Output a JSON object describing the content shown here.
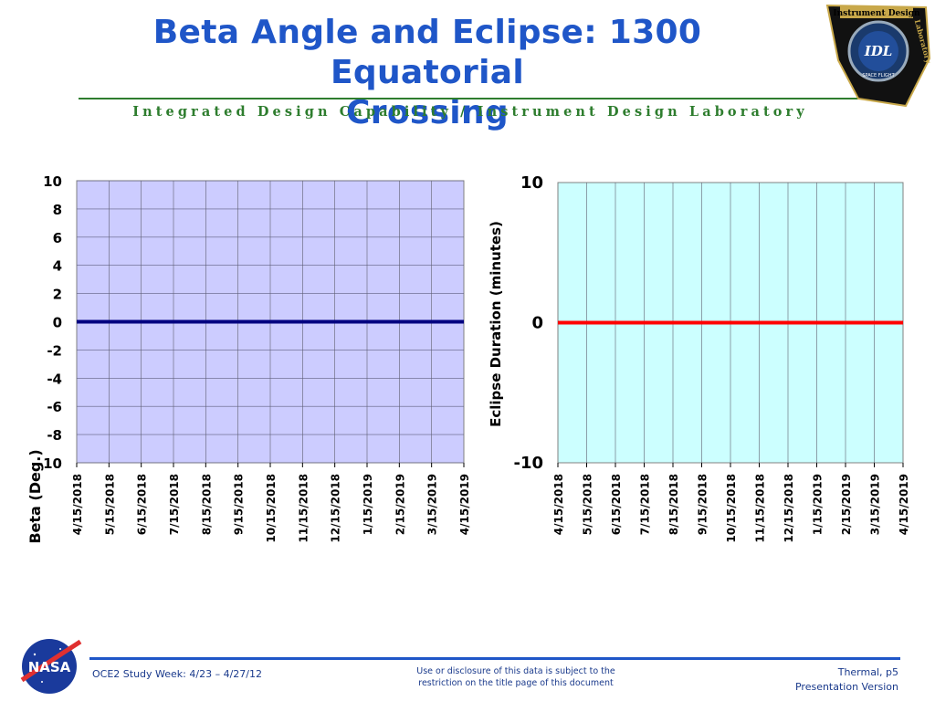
{
  "slide": {
    "title_line1": "Beta Angle and Eclipse: 1300 Equatorial",
    "title_line2": "Crossing",
    "subtitle": "Integrated Design Capability / Instrument Design Laboratory",
    "logo": {
      "top_text": "Instrument Design",
      "side_text": "Laboratory",
      "center_text": "IDL",
      "ring_text": "SPACE FLIGHT",
      "icon": "idl-mission-patch"
    },
    "nasa_logo_text": "NASA",
    "colors": {
      "title": "#1f56c8",
      "subtitle": "#2e7d2e",
      "beta_plot_bg": "#ccccff",
      "eclipse_plot_bg": "#ccffff",
      "beta_line": "#000080",
      "eclipse_line": "#ff0000"
    }
  },
  "chart_data": [
    {
      "type": "line",
      "title": "",
      "xlabel": "",
      "ylabel": "Beta (Deg.)",
      "categories": [
        "4/15/2018",
        "5/15/2018",
        "6/15/2018",
        "7/15/2018",
        "8/15/2018",
        "9/15/2018",
        "10/15/2018",
        "11/15/2018",
        "12/15/2018",
        "1/15/2019",
        "2/15/2019",
        "3/15/2019",
        "4/15/2019"
      ],
      "series": [
        {
          "values": [
            0,
            0,
            0,
            0,
            0,
            0,
            0,
            0,
            0,
            0,
            0,
            0,
            0
          ]
        }
      ],
      "ylim": [
        -10,
        10
      ],
      "yticks": [
        "10",
        "8",
        "6",
        "4",
        "2",
        "0",
        "-2",
        "-4",
        "-6",
        "-8",
        "-10"
      ],
      "grid": true
    },
    {
      "type": "line",
      "title": "",
      "xlabel": "",
      "ylabel": "Eclipse Duration (minutes)",
      "categories": [
        "4/15/2018",
        "5/15/2018",
        "6/15/2018",
        "7/15/2018",
        "8/15/2018",
        "9/15/2018",
        "10/15/2018",
        "11/15/2018",
        "12/15/2018",
        "1/15/2019",
        "2/15/2019",
        "3/15/2019",
        "4/15/2019"
      ],
      "series": [
        {
          "values": [
            0,
            0,
            0,
            0,
            0,
            0,
            0,
            0,
            0,
            0,
            0,
            0,
            0
          ]
        }
      ],
      "ylim": [
        -10,
        10
      ],
      "yticks": [
        "10",
        "0",
        "-10"
      ],
      "grid": true
    }
  ],
  "footer": {
    "left": "OCE2 Study Week:  4/23 – 4/27/12",
    "center_line1": "Use or disclosure of this data is subject to the",
    "center_line2": "restriction on the title page of this document",
    "right_line1": "Thermal,  p5",
    "right_line2": "Presentation Version"
  }
}
